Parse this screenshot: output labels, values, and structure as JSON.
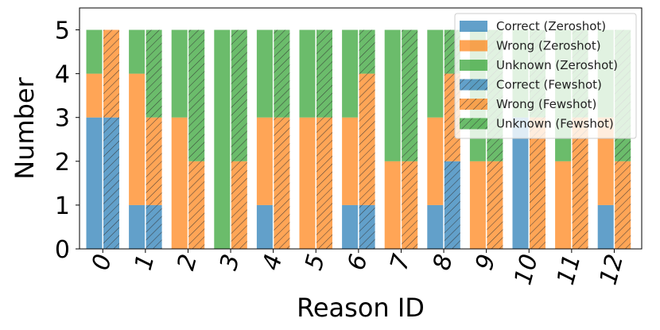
{
  "chart_data": {
    "type": "bar",
    "stacked": true,
    "grouped": true,
    "title": "",
    "xlabel": "Reason ID",
    "ylabel": "Number",
    "ylim": [
      0,
      5.5
    ],
    "yticks": [
      0,
      1,
      2,
      3,
      4,
      5
    ],
    "categories": [
      "0",
      "1",
      "2",
      "3",
      "4",
      "5",
      "6",
      "7",
      "8",
      "9",
      "10",
      "11",
      "12"
    ],
    "series": [
      {
        "name": "Correct (Zeroshot)",
        "group": "Zeroshot",
        "color": "#1f77b4",
        "hatch": false,
        "values": [
          3,
          1,
          0,
          0,
          1,
          0,
          1,
          0,
          1,
          0,
          3,
          0,
          1
        ]
      },
      {
        "name": "Wrong (Zeroshot)",
        "group": "Zeroshot",
        "color": "#ff7f0e",
        "hatch": false,
        "values": [
          1,
          3,
          3,
          0,
          2,
          3,
          2,
          2,
          2,
          2,
          0,
          2,
          2
        ]
      },
      {
        "name": "Unknown (Zeroshot)",
        "group": "Zeroshot",
        "color": "#2ca02c",
        "hatch": false,
        "values": [
          1,
          1,
          2,
          5,
          2,
          2,
          2,
          3,
          2,
          3,
          2,
          3,
          2
        ]
      },
      {
        "name": "Correct (Fewshot)",
        "group": "Fewshot",
        "color": "#1f77b4",
        "hatch": true,
        "values": [
          3,
          1,
          0,
          0,
          0,
          0,
          1,
          0,
          2,
          0,
          0,
          0,
          0
        ]
      },
      {
        "name": "Wrong (Fewshot)",
        "group": "Fewshot",
        "color": "#ff7f0e",
        "hatch": true,
        "values": [
          2,
          2,
          2,
          2,
          3,
          3,
          3,
          2,
          2,
          2,
          3,
          3,
          2
        ]
      },
      {
        "name": "Unknown (Fewshot)",
        "group": "Fewshot",
        "color": "#2ca02c",
        "hatch": true,
        "values": [
          0,
          2,
          3,
          3,
          2,
          2,
          1,
          3,
          1,
          3,
          2,
          2,
          3
        ]
      }
    ],
    "legend_position": "top-right",
    "grid": false
  }
}
